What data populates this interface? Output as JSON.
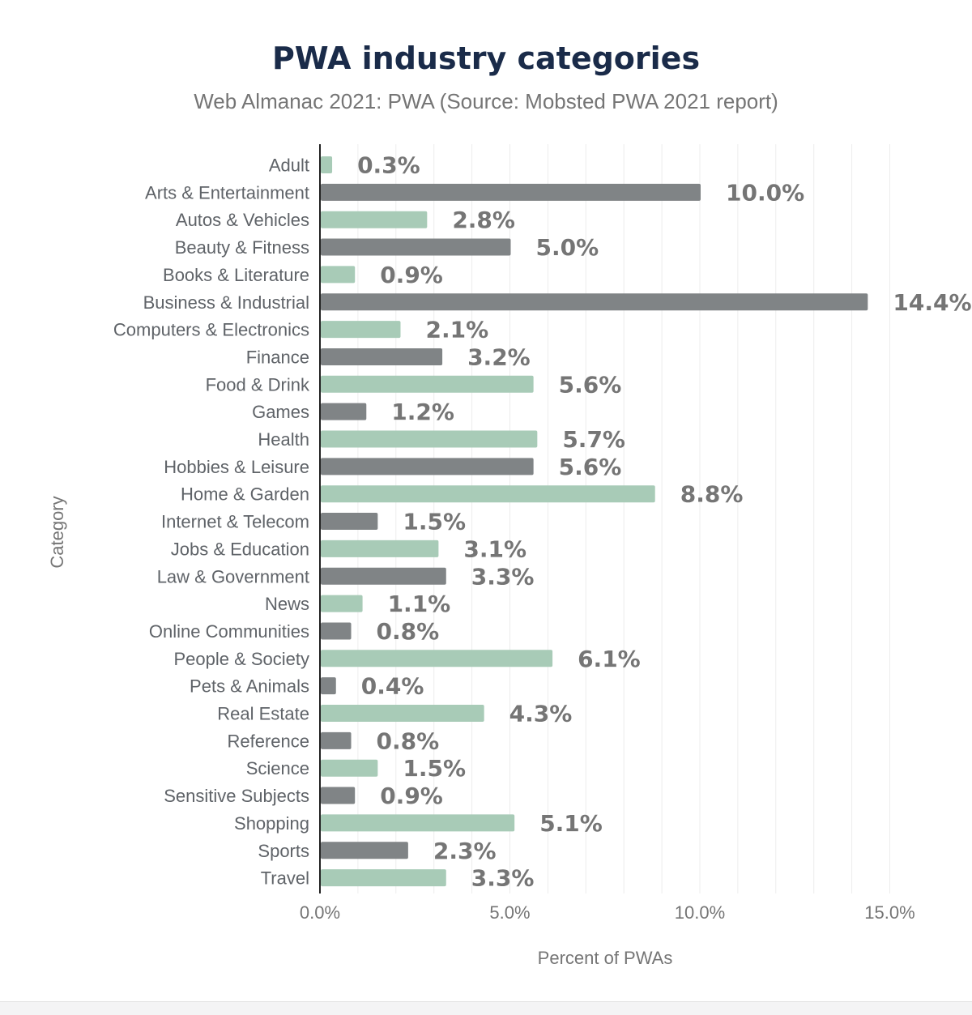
{
  "chart_data": {
    "type": "bar",
    "orientation": "horizontal",
    "title": "PWA industry categories",
    "subtitle": "Web Almanac 2021: PWA (Source: Mobsted PWA 2021 report)",
    "xlabel": "Percent of PWAs",
    "ylabel": "Category",
    "xlim": [
      0,
      15
    ],
    "xticks": [
      "0.0%",
      "5.0%",
      "10.0%",
      "15.0%"
    ],
    "grid": true,
    "categories": [
      "Adult",
      "Arts & Entertainment",
      "Autos & Vehicles",
      "Beauty & Fitness",
      "Books & Literature",
      "Business & Industrial",
      "Computers & Electronics",
      "Finance",
      "Food & Drink",
      "Games",
      "Health",
      "Hobbies & Leisure",
      "Home & Garden",
      "Internet & Telecom",
      "Jobs & Education",
      "Law & Government",
      "News",
      "Online Communities",
      "People & Society",
      "Pets & Animals",
      "Real Estate",
      "Reference",
      "Science",
      "Sensitive Subjects",
      "Shopping",
      "Sports",
      "Travel"
    ],
    "values": [
      0.3,
      10.0,
      2.8,
      5.0,
      0.9,
      14.4,
      2.1,
      3.2,
      5.6,
      1.2,
      5.7,
      5.6,
      8.8,
      1.5,
      3.1,
      3.3,
      1.1,
      0.8,
      6.1,
      0.4,
      4.3,
      0.8,
      1.5,
      0.9,
      5.1,
      2.3,
      3.3
    ],
    "value_labels": [
      "0.3%",
      "10.0%",
      "2.8%",
      "5.0%",
      "0.9%",
      "14.4%",
      "2.1%",
      "3.2%",
      "5.6%",
      "1.2%",
      "5.7%",
      "5.6%",
      "8.8%",
      "1.5%",
      "3.1%",
      "3.3%",
      "1.1%",
      "0.8%",
      "6.1%",
      "0.4%",
      "4.3%",
      "0.8%",
      "1.5%",
      "0.9%",
      "5.1%",
      "2.3%",
      "3.3%"
    ],
    "colors": [
      "#a8cbb7",
      "#808486"
    ]
  }
}
